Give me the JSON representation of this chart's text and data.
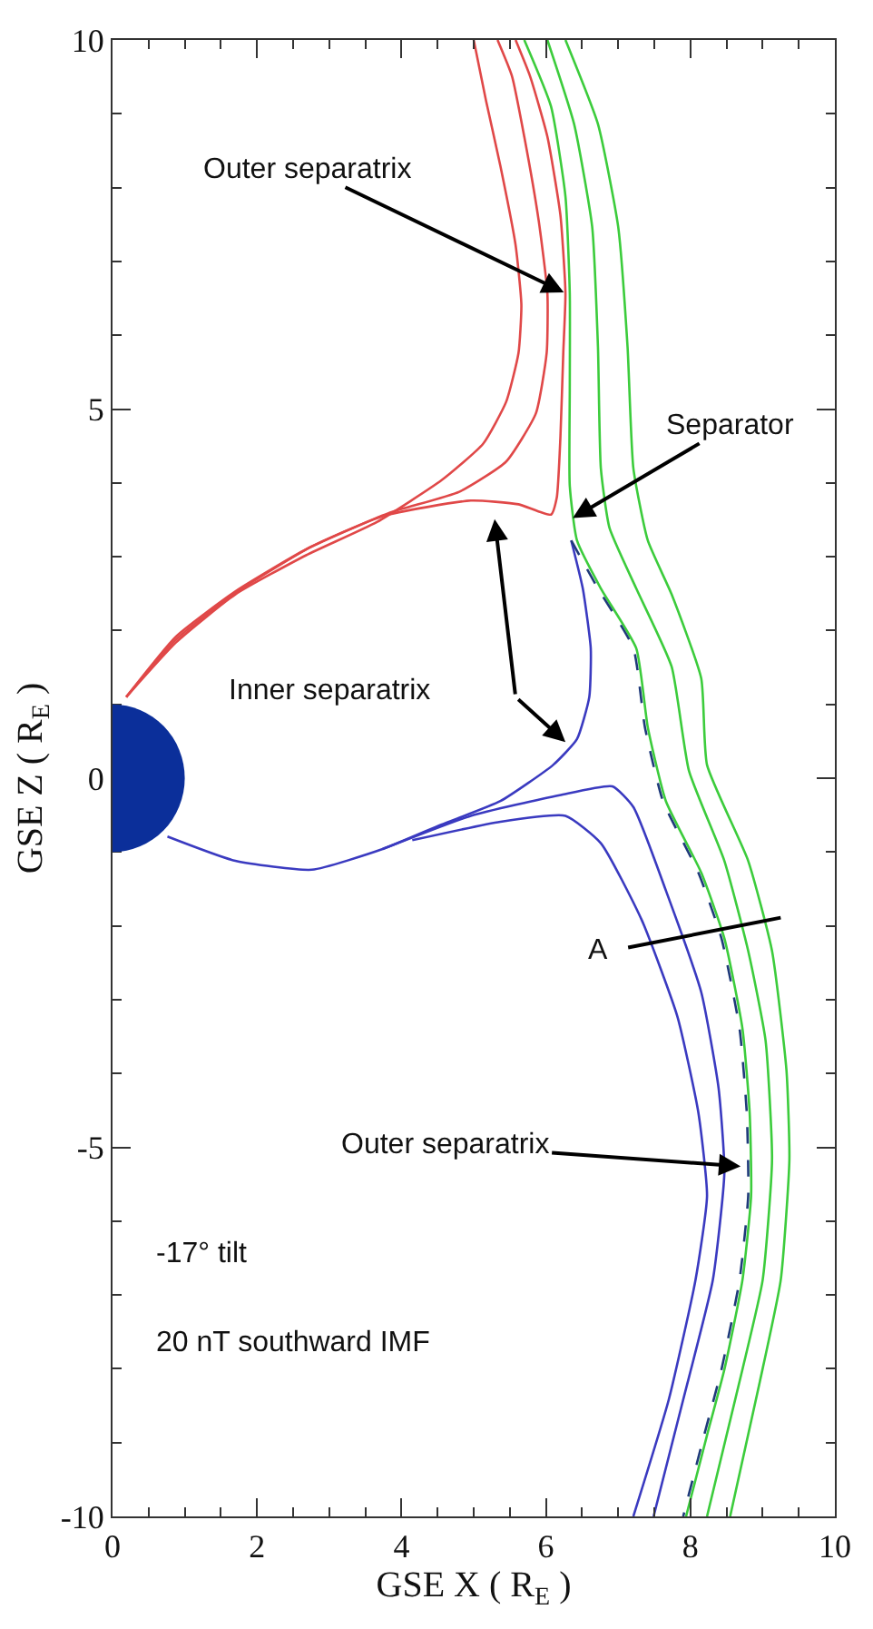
{
  "chart_data": {
    "type": "line",
    "xlabel": "GSE X ( R$_{E}$ )",
    "ylabel": "GSE Z ( R$_{E}$ )",
    "xlim": [
      0,
      10
    ],
    "ylim": [
      -10,
      10
    ],
    "xticks": [
      0,
      {
        "value": 0.5,
        "label": null
      },
      {
        "value": 1,
        "label": null
      },
      {
        "value": 1.5,
        "label": null
      },
      2,
      {
        "value": 2.5,
        "label": null
      },
      {
        "value": 3,
        "label": null
      },
      {
        "value": 3.5,
        "label": null
      },
      4,
      {
        "value": 4.5,
        "label": null
      },
      {
        "value": 5,
        "label": null
      },
      {
        "value": 5.5,
        "label": null
      },
      6,
      {
        "value": 6.5,
        "label": null
      },
      {
        "value": 7,
        "label": null
      },
      {
        "value": 7.5,
        "label": null
      },
      8,
      {
        "value": 8.5,
        "label": null
      },
      {
        "value": 9,
        "label": null
      },
      {
        "value": 9.5,
        "label": null
      },
      10
    ],
    "yticks": [
      -10,
      {
        "value": -9,
        "label": null
      },
      {
        "value": -8,
        "label": null
      },
      {
        "value": -7,
        "label": null
      },
      {
        "value": -6,
        "label": null
      },
      -5,
      {
        "value": -4,
        "label": null
      },
      {
        "value": -3,
        "label": null
      },
      {
        "value": -2,
        "label": null
      },
      {
        "value": -1,
        "label": null
      },
      0,
      {
        "value": 1,
        "label": null
      },
      {
        "value": 2,
        "label": null
      },
      {
        "value": 3,
        "label": null
      },
      {
        "value": 4,
        "label": null
      },
      5,
      {
        "value": 6,
        "label": null
      },
      {
        "value": 7,
        "label": null
      },
      {
        "value": 8,
        "label": null
      },
      {
        "value": 9,
        "label": null
      },
      10
    ],
    "marker": "none",
    "line_style": "solid",
    "series": [
      {
        "color": "#e04848",
        "x": [
          0.19,
          0.88,
          1.7,
          2.68,
          3.66,
          4.56,
          5.13,
          5.45,
          5.62,
          5.66,
          5.58,
          5.37,
          5.17,
          5.0
        ],
        "values": [
          1.1,
          1.84,
          2.49,
          3.02,
          3.47,
          4.04,
          4.53,
          5.1,
          5.76,
          6.41,
          7.22,
          8.29,
          9.18,
          10.0
        ]
      },
      {
        "color": "#e04848",
        "x": [
          0.19,
          0.88,
          1.7,
          2.76,
          3.82,
          4.8,
          5.45,
          5.86,
          6.01,
          6.02,
          5.9,
          5.7,
          5.53,
          5.33
        ],
        "values": [
          1.1,
          1.88,
          2.51,
          3.14,
          3.59,
          3.88,
          4.29,
          4.94,
          5.76,
          6.57,
          7.55,
          8.69,
          9.51,
          10.0
        ]
      },
      {
        "color": "#e04848",
        "x": [
          0.19,
          0.88,
          1.7,
          2.68,
          3.74,
          4.96,
          5.62,
          6.07,
          6.15,
          6.2,
          6.24,
          6.27,
          6.2,
          6.02,
          5.78,
          5.58
        ],
        "values": [
          1.1,
          1.92,
          2.53,
          3.1,
          3.55,
          3.76,
          3.71,
          3.57,
          3.8,
          4.61,
          5.76,
          6.57,
          7.63,
          8.69,
          9.51,
          10.0
        ]
      },
      {
        "color": "#3ccc3c",
        "x": [
          5.7,
          6.07,
          6.27,
          6.33,
          6.33,
          6.33,
          6.43,
          6.76,
          7.25,
          7.41,
          7.66,
          8.15,
          8.47,
          8.72,
          8.82,
          8.84,
          8.72,
          8.47,
          8.23,
          7.94
        ],
        "values": [
          10.0,
          9.1,
          7.88,
          6.57,
          5.27,
          3.96,
          3.22,
          2.57,
          1.76,
          0.69,
          -0.31,
          -1.28,
          -2.17,
          -3.39,
          -4.53,
          -5.66,
          -6.8,
          -8.01,
          -8.9,
          -10.0
        ]
      },
      {
        "color": "#3ccc3c",
        "x": [
          6.02,
          6.39,
          6.64,
          6.72,
          6.76,
          6.88,
          7.25,
          7.74,
          7.98,
          8.47,
          8.8,
          9.04,
          9.13,
          9.0,
          8.72,
          8.23
        ],
        "values": [
          10.0,
          8.86,
          7.47,
          5.84,
          4.2,
          3.39,
          2.57,
          1.51,
          0.1,
          -1.12,
          -2.34,
          -3.55,
          -5.17,
          -6.8,
          -8.01,
          -10.0
        ]
      },
      {
        "color": "#3ccc3c",
        "x": [
          6.27,
          6.72,
          7.0,
          7.13,
          7.21,
          7.41,
          7.74,
          8.15,
          8.23,
          8.8,
          9.13,
          9.33,
          9.37,
          9.25,
          8.96,
          8.55
        ],
        "values": [
          10.0,
          8.86,
          7.47,
          5.84,
          4.2,
          3.22,
          2.49,
          1.35,
          0.18,
          -1.12,
          -2.34,
          -3.96,
          -5.17,
          -6.8,
          -8.18,
          -10.0
        ]
      },
      {
        "color": "#3a3ac0",
        "x": [
          6.35,
          6.51,
          6.62,
          6.6,
          6.43,
          6.1,
          5.37,
          4.55,
          3.74,
          2.76,
          1.7,
          0.76
        ],
        "values": [
          3.22,
          2.57,
          1.76,
          1.1,
          0.53,
          0.18,
          -0.31,
          -0.63,
          -0.96,
          -1.24,
          -1.12,
          -0.79
        ]
      },
      {
        "color": "#1f3a7a",
        "line_style": "dashed",
        "x": [
          6.35,
          6.72,
          7.21,
          7.37,
          7.62,
          8.11,
          8.43,
          8.68,
          8.78,
          8.8,
          8.68,
          8.43,
          8.19,
          7.9
        ],
        "values": [
          3.22,
          2.57,
          1.76,
          0.69,
          -0.31,
          -1.28,
          -2.17,
          -3.39,
          -4.53,
          -5.66,
          -6.8,
          -8.01,
          -8.9,
          -10.0
        ]
      },
      {
        "color": "#3a3ac0",
        "x": [
          3.74,
          4.96,
          6.19,
          6.92,
          7.21,
          7.66,
          8.15,
          8.39,
          8.47,
          8.31,
          7.9,
          7.49
        ],
        "values": [
          -0.96,
          -0.51,
          -0.23,
          -0.11,
          -0.39,
          -1.52,
          -2.9,
          -4.2,
          -5.34,
          -6.8,
          -8.42,
          -10.0
        ]
      },
      {
        "color": "#3a3ac0",
        "x": [
          4.15,
          5.37,
          6.27,
          6.76,
          7.33,
          7.82,
          8.11,
          8.23,
          8.07,
          7.7,
          7.21
        ],
        "values": [
          -0.84,
          -0.59,
          -0.51,
          -0.88,
          -1.93,
          -3.23,
          -4.53,
          -5.66,
          -6.8,
          -8.42,
          -10.0
        ]
      }
    ],
    "annotations": [
      {
        "text": "Outer separatrix",
        "x": 6.27,
        "y": 6.57
      },
      {
        "text": "Separator",
        "x": 6.35,
        "y": 3.51
      },
      "Inner separatrix",
      "A",
      {
        "text": "Outer separatrix",
        "x": 8.72,
        "y": -5.26
      },
      "-17° tilt",
      "20 nT southward IMF"
    ]
  }
}
